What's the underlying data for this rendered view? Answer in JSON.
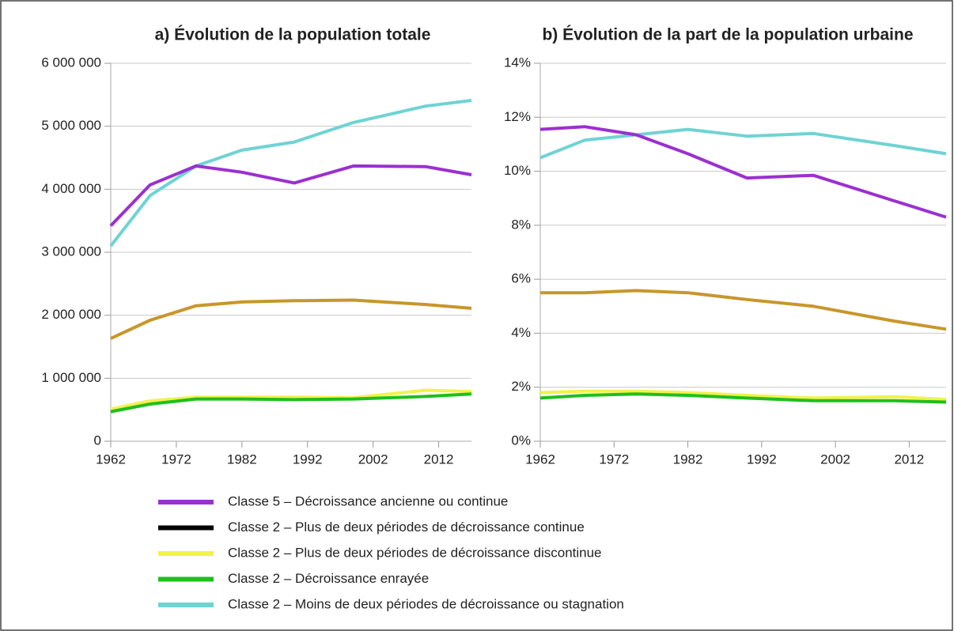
{
  "chart_data": [
    {
      "type": "line",
      "title": "a)  Évolution de la population totale",
      "x": [
        1962,
        1968,
        1975,
        1982,
        1990,
        1999,
        2010,
        2017
      ],
      "xlim": [
        1962,
        2017
      ],
      "xticks": [
        1962,
        1972,
        1982,
        1992,
        2002,
        2012
      ],
      "ylim": [
        0,
        6000000
      ],
      "yticks": [
        0,
        {
          "value": 1000000,
          "label": "1 000 000"
        },
        {
          "value": 2000000,
          "label": "2 000 000"
        },
        {
          "value": 3000000,
          "label": "3 000 000"
        },
        {
          "value": 4000000,
          "label": "4 000 000"
        },
        {
          "value": 5000000,
          "label": "5 000 000"
        },
        {
          "value": 6000000,
          "label": "6 000 000"
        }
      ],
      "grid": true,
      "series": [
        {
          "color": "#c8962a",
          "values": [
            1630000,
            1920000,
            2150000,
            2210000,
            2230000,
            2240000,
            2170000,
            2110000
          ]
        },
        {
          "color": "#f2f24a",
          "values": [
            510000,
            640000,
            700000,
            700000,
            700000,
            690000,
            810000,
            790000
          ]
        },
        {
          "color": "#1fbf1f",
          "values": [
            470000,
            590000,
            670000,
            670000,
            660000,
            670000,
            710000,
            750000
          ]
        },
        {
          "color": "#6fd3d3",
          "values": [
            3100000,
            3900000,
            4370000,
            4620000,
            4750000,
            5060000,
            5320000,
            5410000
          ]
        },
        {
          "color": "#9b30d0",
          "values": [
            3420000,
            4070000,
            4370000,
            4270000,
            4100000,
            4370000,
            4360000,
            4230000
          ]
        }
      ]
    },
    {
      "type": "line",
      "title": "b)  Évolution de la part de la population urbaine",
      "x": [
        1962,
        1968,
        1975,
        1982,
        1990,
        1999,
        2010,
        2017
      ],
      "xlim": [
        1962,
        2017
      ],
      "xticks": [
        1962,
        1972,
        1982,
        1992,
        2002,
        2012
      ],
      "ylim": [
        0,
        14
      ],
      "yticks": [
        {
          "value": 0,
          "label": "0%"
        },
        {
          "value": 2,
          "label": "2%"
        },
        {
          "value": 4,
          "label": "4%"
        },
        {
          "value": 6,
          "label": "6%"
        },
        {
          "value": 8,
          "label": "8%"
        },
        {
          "value": 10,
          "label": "10%"
        },
        {
          "value": 12,
          "label": "12%"
        },
        {
          "value": 14,
          "label": "14%"
        }
      ],
      "grid": true,
      "series": [
        {
          "color": "#c8962a",
          "values": [
            5.5,
            5.5,
            5.58,
            5.5,
            5.25,
            5.0,
            4.45,
            4.15
          ]
        },
        {
          "color": "#f2f24a",
          "values": [
            1.8,
            1.85,
            1.85,
            1.8,
            1.7,
            1.6,
            1.65,
            1.55
          ]
        },
        {
          "color": "#1fbf1f",
          "values": [
            1.6,
            1.7,
            1.75,
            1.7,
            1.6,
            1.5,
            1.5,
            1.45
          ]
        },
        {
          "color": "#6fd3d3",
          "values": [
            10.5,
            11.15,
            11.35,
            11.55,
            11.3,
            11.4,
            10.95,
            10.65
          ]
        },
        {
          "color": "#9b30d0",
          "values": [
            11.55,
            11.65,
            11.35,
            10.65,
            9.75,
            9.85,
            8.9,
            8.3
          ]
        }
      ]
    }
  ],
  "legend": [
    {
      "label": "Classe 5 – Décroissance ancienne ou continue",
      "color": "#9b30d0"
    },
    {
      "label": "Classe 2 – Plus de deux périodes de décroissance continue",
      "color": "#000000"
    },
    {
      "label": "Classe 2 – Plus de deux périodes de décroissance discontinue",
      "color": "#f2f24a"
    },
    {
      "label": "Classe 2 – Décroissance enrayée",
      "color": "#1fbf1f"
    },
    {
      "label": "Classe 2 – Moins de deux périodes de décroissance ou stagnation",
      "color": "#6fd3d3"
    }
  ]
}
